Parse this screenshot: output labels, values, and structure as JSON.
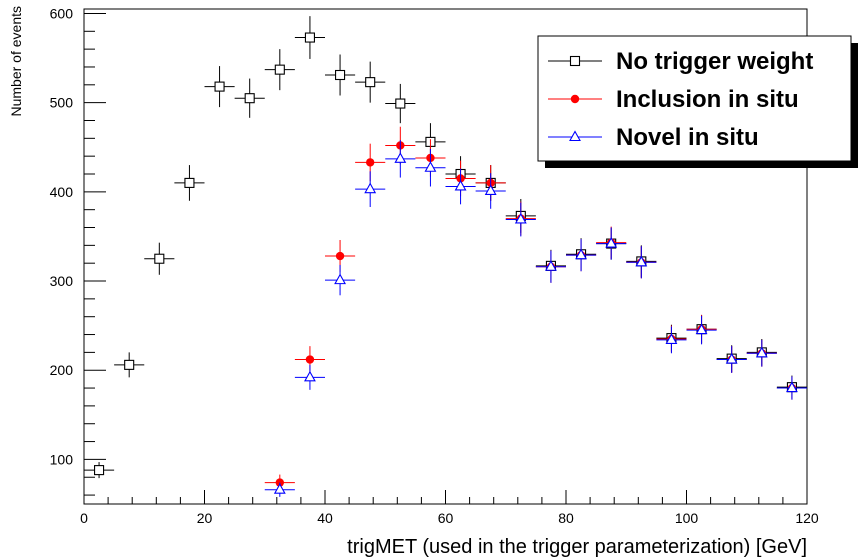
{
  "chart_data": {
    "type": "scatter",
    "xlabel": "trigMET (used in the trigger parameterization) [GeV]",
    "ylabel": "Number of events",
    "xlim": [
      0,
      120
    ],
    "ylim": [
      50,
      605
    ],
    "xticks": [
      0,
      20,
      40,
      60,
      80,
      100,
      120
    ],
    "yticks": [
      100,
      200,
      300,
      400,
      500,
      600
    ],
    "bin_width": 5,
    "legend_position": "top-right",
    "grid": false,
    "series": [
      {
        "name": "No trigger weight",
        "color": "#000000",
        "marker": "open-square",
        "x": [
          2.5,
          7.5,
          12.5,
          17.5,
          22.5,
          27.5,
          32.5,
          37.5,
          42.5,
          47.5,
          52.5,
          57.5,
          62.5,
          67.5,
          72.5,
          77.5,
          82.5,
          87.5,
          92.5,
          97.5,
          102.5,
          107.5,
          112.5,
          117.5
        ],
        "y": [
          88,
          206,
          325,
          410,
          518,
          505,
          537,
          573,
          531,
          523,
          499,
          456,
          420,
          410,
          373,
          317,
          330,
          342,
          322,
          236,
          246,
          213,
          220,
          181
        ],
        "err": [
          9,
          14,
          18,
          20,
          23,
          22,
          23,
          24,
          23,
          23,
          22,
          21,
          20,
          20,
          19,
          18,
          18,
          18,
          18,
          15,
          16,
          15,
          15,
          13
        ]
      },
      {
        "name": "Inclusion in situ",
        "color": "#ff0000",
        "marker": "filled-circle",
        "x": [
          32.5,
          37.5,
          42.5,
          47.5,
          52.5,
          57.5,
          62.5,
          67.5,
          72.5,
          77.5,
          82.5,
          87.5,
          92.5,
          97.5,
          102.5,
          107.5,
          112.5,
          117.5
        ],
        "y": [
          74,
          212,
          328,
          433,
          452,
          438,
          415,
          410,
          370,
          316,
          329,
          343,
          321,
          235,
          246,
          212,
          219,
          180
        ],
        "err": [
          9,
          15,
          18,
          21,
          21,
          21,
          20,
          20,
          19,
          18,
          18,
          18,
          18,
          15,
          16,
          15,
          15,
          13
        ]
      },
      {
        "name": "Novel in situ",
        "color": "#0000ff",
        "marker": "open-triangle",
        "x": [
          32.5,
          37.5,
          42.5,
          47.5,
          52.5,
          57.5,
          62.5,
          67.5,
          72.5,
          77.5,
          82.5,
          87.5,
          92.5,
          97.5,
          102.5,
          107.5,
          112.5,
          117.5
        ],
        "y": [
          66,
          192,
          301,
          403,
          437,
          427,
          406,
          401,
          369,
          316,
          329,
          342,
          321,
          234,
          245,
          212,
          219,
          180
        ],
        "err": [
          8,
          14,
          17,
          20,
          21,
          21,
          20,
          20,
          19,
          18,
          18,
          18,
          18,
          15,
          16,
          15,
          15,
          13
        ]
      }
    ]
  }
}
